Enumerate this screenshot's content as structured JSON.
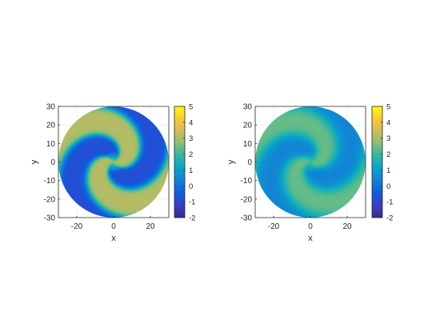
{
  "chart_data": [
    {
      "type": "heatmap",
      "title": "",
      "xlabel": "x",
      "ylabel": "y",
      "xlim": [
        -30,
        30
      ],
      "ylim": [
        -30,
        30
      ],
      "xticks": [
        "-20",
        "0",
        "20"
      ],
      "xtick_values": [
        -20,
        0,
        20
      ],
      "yticks": [
        "30",
        "20",
        "10",
        "0",
        "-10",
        "-20",
        "-30"
      ],
      "ytick_values": [
        30,
        20,
        10,
        0,
        -10,
        -20,
        -30
      ],
      "grid": true,
      "domain": "disk radius 30 centered at origin",
      "pattern": "two-armed spiral",
      "colorbar": {
        "clim": [
          -2,
          5
        ],
        "ticks": [
          "5",
          "4",
          "3",
          "2",
          "1",
          "0",
          "-1",
          "-2"
        ],
        "tick_values": [
          5,
          4,
          3,
          2,
          1,
          0,
          -1,
          -2
        ],
        "colormap": "parula"
      },
      "value_high": 3.2,
      "value_low": -0.8
    },
    {
      "type": "heatmap",
      "title": "",
      "xlabel": "x",
      "ylabel": "y",
      "xlim": [
        -30,
        30
      ],
      "ylim": [
        -30,
        30
      ],
      "xticks": [
        "-20",
        "0",
        "20"
      ],
      "xtick_values": [
        -20,
        0,
        20
      ],
      "yticks": [
        "30",
        "20",
        "10",
        "0",
        "-10",
        "-20",
        "-30"
      ],
      "ytick_values": [
        30,
        20,
        10,
        0,
        -10,
        -20,
        -30
      ],
      "grid": true,
      "domain": "disk radius 30 centered at origin",
      "pattern": "two-armed spiral (diffused)",
      "colorbar": {
        "clim": [
          -2,
          5
        ],
        "ticks": [
          "5",
          "4",
          "3",
          "2",
          "1",
          "0",
          "-1",
          "-2"
        ],
        "tick_values": [
          5,
          4,
          3,
          2,
          1,
          0,
          -1,
          -2
        ],
        "colormap": "parula"
      },
      "value_high": 2.6,
      "value_low": 0.2
    }
  ],
  "colors": {
    "parula": [
      "#352a87",
      "#3e3dcb",
      "#0f5cdd",
      "#1481d6",
      "#06a4ca",
      "#2eb7a4",
      "#87bf77",
      "#d1bb59",
      "#fec832",
      "#f9fb0e"
    ],
    "axis": "#262626",
    "grid": "#e6e6e6"
  }
}
